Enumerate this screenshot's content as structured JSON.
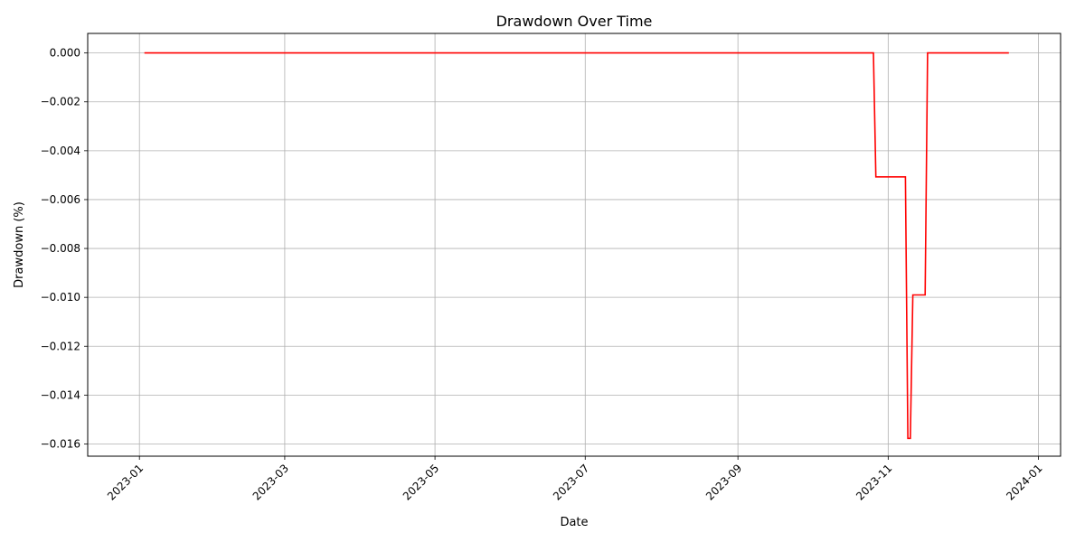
{
  "chart_data": {
    "type": "line",
    "title": "Drawdown Over Time",
    "xlabel": "Date",
    "ylabel": "Drawdown (%)",
    "grid": true,
    "legend": "none",
    "line_style": "step",
    "xlim": [
      "2022-12-11",
      "2024-01-10"
    ],
    "ylim": [
      -0.0165,
      0.0008
    ],
    "x_ticks": [
      "2023-01",
      "2023-03",
      "2023-05",
      "2023-07",
      "2023-09",
      "2023-11",
      "2024-01"
    ],
    "y_ticks": [
      0.0,
      -0.002,
      -0.004,
      -0.006,
      -0.008,
      -0.01,
      -0.012,
      -0.014,
      -0.016
    ],
    "y_tick_labels": [
      "0.000",
      "−0.002",
      "−0.004",
      "−0.006",
      "−0.008",
      "−0.010",
      "−0.012",
      "−0.014",
      "−0.016"
    ],
    "series": [
      {
        "color": "#ff0000",
        "x": [
          "2023-01-03",
          "2023-10-26",
          "2023-10-27",
          "2023-11-08",
          "2023-11-09",
          "2023-11-10",
          "2023-11-11",
          "2023-11-16",
          "2023-11-17",
          "2023-12-20"
        ],
        "y": [
          0.0,
          0.0,
          -0.00507,
          -0.00507,
          -0.01577,
          -0.01577,
          -0.0099,
          -0.0099,
          0.0,
          0.0
        ]
      }
    ]
  }
}
